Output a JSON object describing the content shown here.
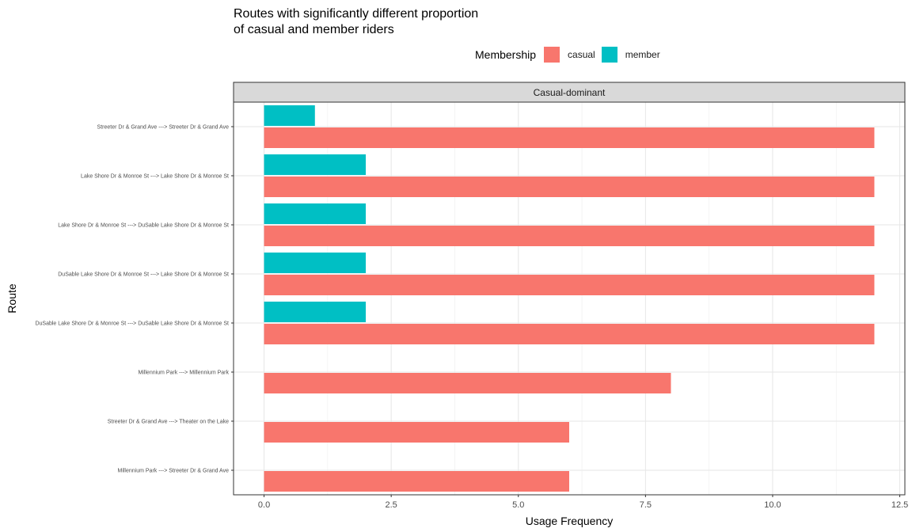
{
  "chart_data": {
    "type": "bar",
    "orientation": "horizontal",
    "title": "Routes with significantly different proportion\nof casual and member riders",
    "xlabel": "Usage Frequency",
    "ylabel": "Route",
    "facet_label": "Casual-dominant",
    "legend": {
      "title": "Membership",
      "position": "top",
      "entries": [
        {
          "name": "casual",
          "color": "#F8766D"
        },
        {
          "name": "member",
          "color": "#00BFC4"
        }
      ]
    },
    "categories": [
      "Streeter Dr & Grand Ave ---> Streeter Dr & Grand Ave",
      "Lake Shore Dr & Monroe St ---> Lake Shore Dr & Monroe St",
      "Lake Shore Dr & Monroe St ---> DuSable Lake Shore Dr & Monroe St",
      "DuSable Lake Shore Dr & Monroe St ---> Lake Shore Dr & Monroe St",
      "DuSable Lake Shore Dr & Monroe St ---> DuSable Lake Shore Dr & Monroe St",
      "Millennium Park ---> Millennium Park",
      "Streeter Dr & Grand Ave ---> Theater on the Lake",
      "Millennium Park ---> Streeter Dr & Grand Ave"
    ],
    "series": [
      {
        "name": "casual",
        "color": "#F8766D",
        "values": [
          12,
          12,
          12,
          12,
          12,
          8,
          6,
          6
        ]
      },
      {
        "name": "member",
        "color": "#00BFC4",
        "values": [
          1,
          2,
          2,
          2,
          2,
          null,
          null,
          null
        ]
      }
    ],
    "xlim": [
      -0.6,
      12.6
    ],
    "xticks": [
      0,
      2.5,
      5,
      7.5,
      10,
      12.5
    ],
    "xtick_labels": [
      "0.0",
      "2.5",
      "5.0",
      "7.5",
      "10.0",
      "12.5"
    ],
    "grid": true
  }
}
